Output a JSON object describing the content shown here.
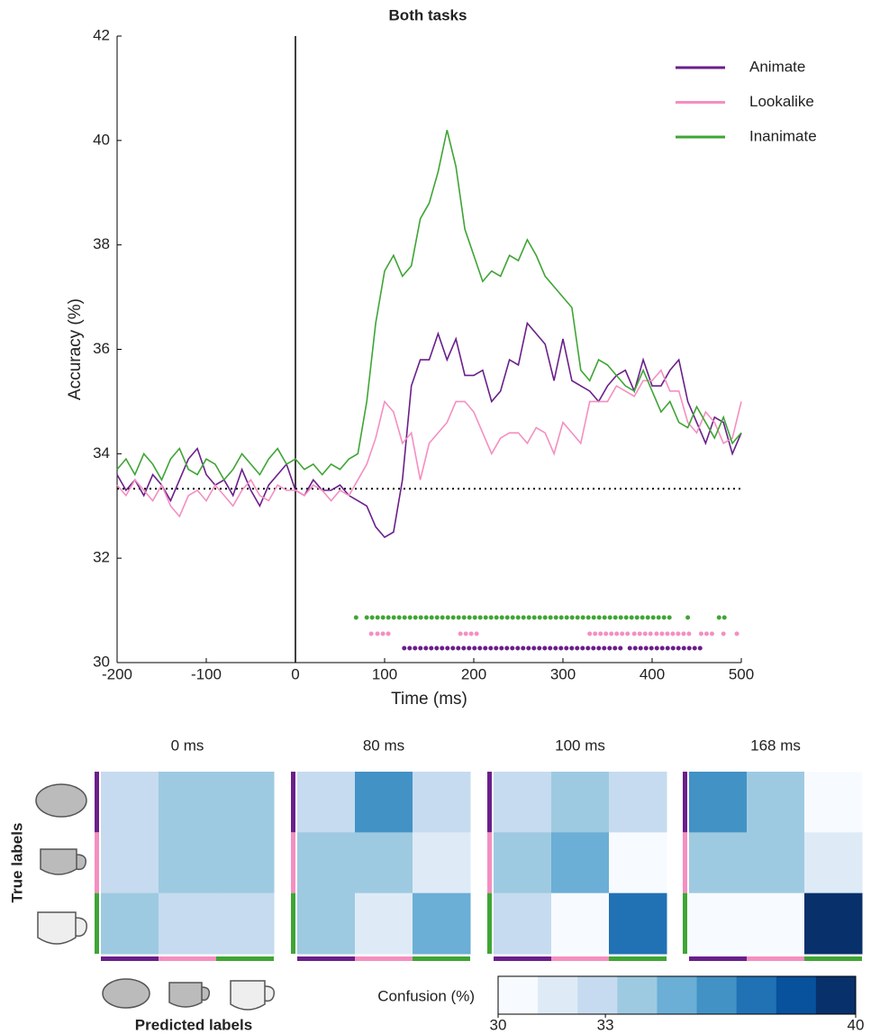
{
  "chart_data": [
    {
      "type": "line",
      "title": "Both tasks",
      "x_label": "Time (ms)",
      "y_label": "Accuracy (%)",
      "x": [
        -200,
        -190,
        -180,
        -170,
        -160,
        -150,
        -140,
        -130,
        -120,
        -110,
        -100,
        -90,
        -80,
        -70,
        -60,
        -50,
        -40,
        -30,
        -20,
        -10,
        0,
        10,
        20,
        30,
        40,
        50,
        60,
        70,
        80,
        90,
        100,
        110,
        120,
        130,
        140,
        150,
        160,
        170,
        180,
        190,
        200,
        210,
        220,
        230,
        240,
        250,
        260,
        270,
        280,
        290,
        300,
        310,
        320,
        330,
        340,
        350,
        360,
        370,
        380,
        390,
        400,
        410,
        420,
        430,
        440,
        450,
        460,
        470,
        480,
        490,
        500
      ],
      "series": [
        {
          "name": "Animate",
          "color": "#6a1f8a",
          "values": [
            33.6,
            33.3,
            33.5,
            33.2,
            33.6,
            33.4,
            33.1,
            33.5,
            33.9,
            34.1,
            33.6,
            33.4,
            33.5,
            33.2,
            33.7,
            33.3,
            33.0,
            33.4,
            33.6,
            33.8,
            33.3,
            33.2,
            33.5,
            33.3,
            33.3,
            33.4,
            33.2,
            33.1,
            33.0,
            32.6,
            32.4,
            32.5,
            33.5,
            35.3,
            35.8,
            35.8,
            36.3,
            35.8,
            36.2,
            35.5,
            35.5,
            35.6,
            35.0,
            35.2,
            35.8,
            35.7,
            36.5,
            36.3,
            36.1,
            35.4,
            36.2,
            35.4,
            35.3,
            35.2,
            35.0,
            35.3,
            35.5,
            35.6,
            35.2,
            35.8,
            35.3,
            35.3,
            35.6,
            35.8,
            35.0,
            34.6,
            34.2,
            34.7,
            34.6,
            34.0,
            34.4
          ],
          "significant": [
            [
              122,
              370
            ],
            [
              375,
              455
            ]
          ]
        },
        {
          "name": "Lookalike",
          "color": "#f48fc1",
          "values": [
            33.4,
            33.2,
            33.5,
            33.3,
            33.1,
            33.4,
            33.0,
            32.8,
            33.2,
            33.3,
            33.1,
            33.4,
            33.2,
            33.0,
            33.3,
            33.5,
            33.2,
            33.1,
            33.4,
            33.3,
            33.3,
            33.2,
            33.4,
            33.3,
            33.1,
            33.3,
            33.2,
            33.5,
            33.8,
            34.3,
            35.0,
            34.8,
            34.2,
            34.4,
            33.5,
            34.2,
            34.4,
            34.6,
            35.0,
            35.0,
            34.8,
            34.4,
            34.0,
            34.3,
            34.4,
            34.4,
            34.2,
            34.5,
            34.4,
            34.0,
            34.6,
            34.4,
            34.2,
            35.0,
            35.0,
            35.0,
            35.3,
            35.2,
            35.1,
            35.4,
            35.4,
            35.6,
            35.2,
            35.2,
            34.6,
            34.4,
            34.8,
            34.6,
            34.2,
            34.3,
            35.0
          ],
          "significant": [
            [
              85,
              88
            ],
            [
              92,
              105
            ],
            [
              185,
              205
            ],
            [
              330,
              375
            ],
            [
              380,
              400
            ],
            [
              405,
              445
            ],
            [
              455,
              470
            ],
            [
              480,
              485
            ],
            [
              495,
              500
            ]
          ]
        },
        {
          "name": "Inanimate",
          "color": "#3fa535",
          "values": [
            33.7,
            33.9,
            33.6,
            34.0,
            33.8,
            33.5,
            33.9,
            34.1,
            33.7,
            33.6,
            33.9,
            33.8,
            33.5,
            33.7,
            34.0,
            33.8,
            33.6,
            33.9,
            34.1,
            33.8,
            33.9,
            33.7,
            33.8,
            33.6,
            33.8,
            33.7,
            33.9,
            34.0,
            35.0,
            36.5,
            37.5,
            37.8,
            37.4,
            37.6,
            38.5,
            38.8,
            39.4,
            40.2,
            39.5,
            38.3,
            37.8,
            37.3,
            37.5,
            37.4,
            37.8,
            37.7,
            38.1,
            37.8,
            37.4,
            37.2,
            37.0,
            36.8,
            35.6,
            35.4,
            35.8,
            35.7,
            35.5,
            35.3,
            35.2,
            35.6,
            35.2,
            34.8,
            35.0,
            34.6,
            34.5,
            34.9,
            34.6,
            34.3,
            34.7,
            34.2,
            34.4
          ],
          "significant": [
            [
              68,
              70
            ],
            [
              80,
              420
            ],
            [
              440,
              442
            ],
            [
              475,
              482
            ]
          ]
        }
      ],
      "chance": 33.33,
      "onset": 0,
      "xlim": [
        -200,
        500
      ],
      "xticks": [
        -200,
        -100,
        0,
        100,
        200,
        300,
        400,
        500
      ],
      "ylim": [
        30,
        42
      ],
      "yticks": [
        30,
        32,
        34,
        36,
        38,
        40,
        42
      ],
      "legend": "upper right"
    },
    {
      "type": "heatmap",
      "y_label": "True labels",
      "x_label": "Predicted labels",
      "colorbar_label": "Confusion (%)",
      "panels": [
        {
          "title": "0 ms",
          "values": [
            [
              32.5,
              33.5,
              33.5
            ],
            [
              32.5,
              33.5,
              33.5
            ],
            [
              33.5,
              32.5,
              32.5
            ]
          ]
        },
        {
          "title": "80 ms",
          "values": [
            [
              32.5,
              36,
              32.5
            ],
            [
              33.5,
              33.5,
              31.5
            ],
            [
              33.5,
              31.5,
              35
            ]
          ]
        },
        {
          "title": "100 ms",
          "values": [
            [
              32.5,
              34,
              32.5
            ],
            [
              34,
              35,
              30.5
            ],
            [
              32.5,
              30.5,
              37
            ]
          ]
        },
        {
          "title": "168 ms",
          "values": [
            [
              36.5,
              34,
              30.5
            ],
            [
              34,
              34,
              31.5
            ],
            [
              30.5,
              30.5,
              40
            ]
          ]
        }
      ],
      "colormap": [
        "#f7fbff",
        "#deebf7",
        "#c6dbef",
        "#9ecae1",
        "#6baed6",
        "#4292c6",
        "#2171b5",
        "#08519c",
        "#08306b"
      ],
      "clim": [
        30,
        40
      ],
      "cticks": [
        30,
        33,
        40
      ]
    }
  ]
}
